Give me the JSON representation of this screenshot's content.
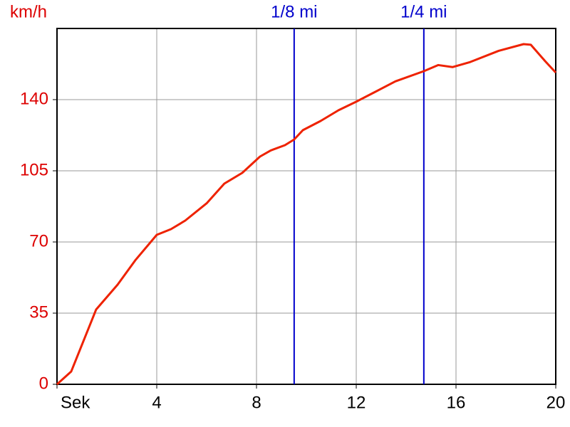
{
  "chart_data": {
    "type": "line",
    "y_label": "km/h",
    "x": [
      0,
      0.57,
      1.57,
      2.43,
      3.14,
      4,
      4.57,
      5.14,
      6,
      6.71,
      7.43,
      8.14,
      8.57,
      9.14,
      9.51,
      9.86,
      10.57,
      11.29,
      12,
      12.71,
      13.57,
      14.71,
      15.29,
      15.86,
      16.57,
      17.71,
      18.71,
      19,
      19.57,
      20
    ],
    "series": [
      {
        "name": "km/h",
        "color": "#ee2200",
        "values": [
          0,
          6.3,
          36.8,
          49,
          61,
          73.5,
          76.3,
          80.5,
          89,
          98.7,
          104,
          112,
          115,
          117.6,
          120.4,
          125,
          129.5,
          134.8,
          139,
          143.5,
          149,
          154,
          157,
          156,
          158.5,
          164,
          167.3,
          167,
          159,
          153.3
        ]
      }
    ],
    "xlim": [
      0,
      20
    ],
    "xticks": [
      {
        "value": 0,
        "label": "Sek"
      },
      4,
      8,
      12,
      16,
      20
    ],
    "ylim": [
      0,
      175
    ],
    "yticks": [
      0,
      35,
      70,
      105,
      140
    ],
    "grid": true,
    "tick_label_color_y": "#dd0000",
    "markers": [
      {
        "label": "1/8 mi",
        "x": 9.51
      },
      {
        "label": "1/4 mi",
        "x": 14.71
      }
    ],
    "marker_color": "#0000cc"
  }
}
